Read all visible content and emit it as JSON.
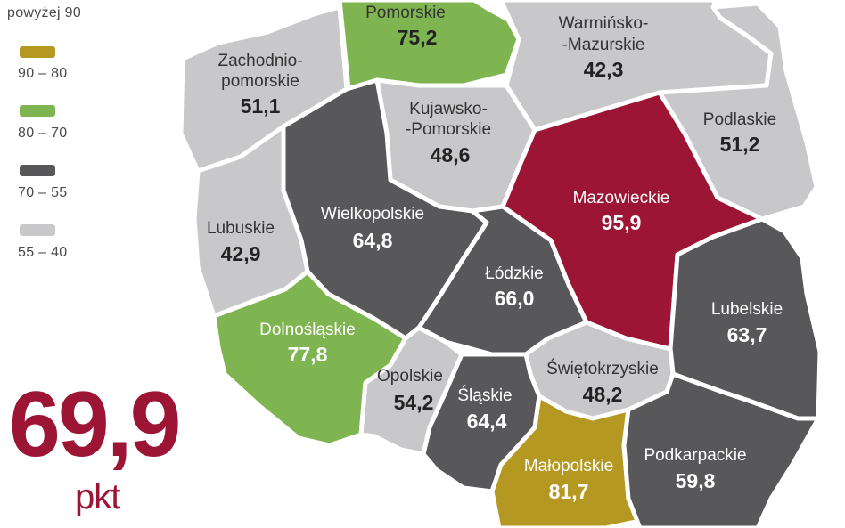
{
  "legend": [
    {
      "label": "powyżej 90",
      "color": "#9c1535"
    },
    {
      "label": "90 – 80",
      "color": "#b59821"
    },
    {
      "label": "80 – 70",
      "color": "#7fb550"
    },
    {
      "label": "70 – 55",
      "color": "#58585a"
    },
    {
      "label": "55 – 40",
      "color": "#c8c8ca"
    }
  ],
  "total": {
    "value": "69,9",
    "unit": "pkt"
  },
  "regions": {
    "pomorskie": {
      "name": "Pomorskie",
      "value": "75,2"
    },
    "warminsko_mazurskie": {
      "name_line1": "Warmińsko-",
      "name_line2": "-Mazurskie",
      "value": "42,3"
    },
    "zachodniopomorskie": {
      "name_line1": "Zachodnio-",
      "name_line2": "pomorskie",
      "value": "51,1"
    },
    "kujawsko_pomorskie": {
      "name_line1": "Kujawsko-",
      "name_line2": "-Pomorskie",
      "value": "48,6"
    },
    "podlaskie": {
      "name": "Podlaskie",
      "value": "51,2"
    },
    "mazowieckie": {
      "name": "Mazowieckie",
      "value": "95,9"
    },
    "wielkopolskie": {
      "name": "Wielkopolskie",
      "value": "64,8"
    },
    "lubuskie": {
      "name": "Lubuskie",
      "value": "42,9"
    },
    "lodzkie": {
      "name": "Łódzkie",
      "value": "66,0"
    },
    "lubelskie": {
      "name": "Lubelskie",
      "value": "63,7"
    },
    "dolnoslaskie": {
      "name": "Dolnośląskie",
      "value": "77,8"
    },
    "swietokrzyskie": {
      "name": "Świętokrzyskie",
      "value": "48,2"
    },
    "opolskie": {
      "name": "Opolskie",
      "value": "54,2"
    },
    "slaskie": {
      "name": "Śląskie",
      "value": "64,4"
    },
    "malopolskie": {
      "name": "Małopolskie",
      "value": "81,7"
    },
    "podkarpackie": {
      "name": "Podkarpackie",
      "value": "59,8"
    }
  }
}
